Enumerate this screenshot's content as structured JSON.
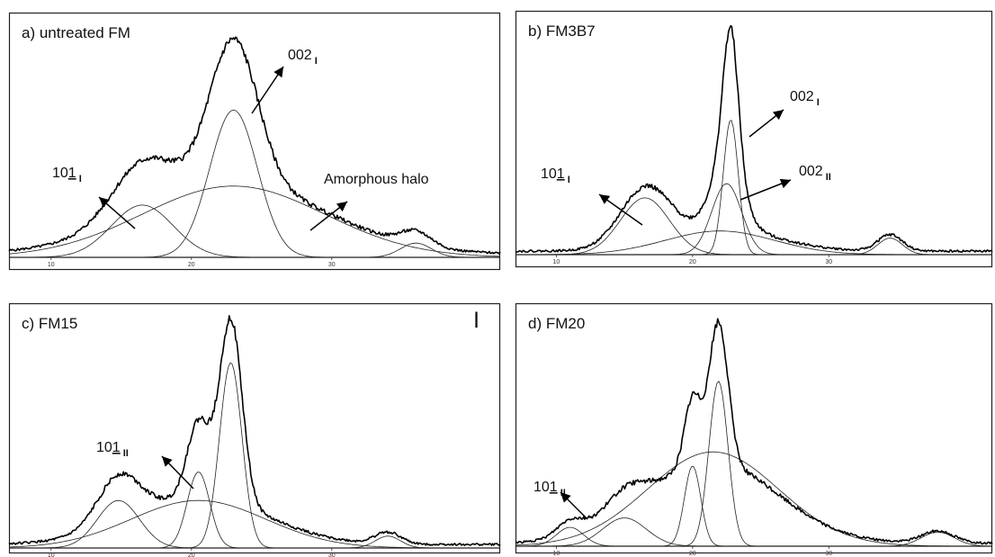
{
  "figure": {
    "stray_mark": "|"
  },
  "chart_data": [
    {
      "type": "line",
      "panel": "a",
      "title": "a)  untreated FM",
      "xlim": [
        7,
        42
      ],
      "ylim": [
        0,
        1.0
      ],
      "xticks": [
        10,
        20,
        30
      ],
      "grid": false,
      "peaks": [
        {
          "center": 16.5,
          "height": 0.22,
          "width": 2.2
        },
        {
          "center": 23.0,
          "height": 0.62,
          "width": 1.7
        },
        {
          "center": 23.0,
          "height": 0.3,
          "width": 6.5
        },
        {
          "center": 36.0,
          "height": 0.06,
          "width": 1.1
        }
      ],
      "observed_max": 0.92,
      "annotations": [
        {
          "base": "101",
          "underline_char": "1",
          "sub": "I",
          "x": 16,
          "y": 0.16,
          "dir": "up-left"
        },
        {
          "base": "002",
          "sub": "I",
          "x": 23,
          "y": 0.58,
          "dir": "up-right"
        },
        {
          "base": "Amorphous halo",
          "sub": "",
          "x": 28.5,
          "y": 0.11,
          "dir": "up-right"
        }
      ]
    },
    {
      "type": "line",
      "panel": "b",
      "title": "b) FM3B7",
      "xlim": [
        7,
        42
      ],
      "ylim": [
        0,
        1.0
      ],
      "xticks": [
        10,
        20,
        30
      ],
      "grid": false,
      "peaks": [
        {
          "center": 16.5,
          "height": 0.24,
          "width": 1.8
        },
        {
          "center": 22.8,
          "height": 0.57,
          "width": 0.55
        },
        {
          "center": 22.5,
          "height": 0.3,
          "width": 1.1
        },
        {
          "center": 22.0,
          "height": 0.1,
          "width": 4.0
        },
        {
          "center": 34.5,
          "height": 0.07,
          "width": 0.9
        }
      ],
      "observed_max": 0.96,
      "annotations": [
        {
          "base": "101",
          "underline_char": "1",
          "sub": "I",
          "x": 17,
          "y": 0.2,
          "dir": "up-left"
        },
        {
          "base": "002",
          "sub": "I",
          "x": 23,
          "y": 0.49,
          "dir": "up-right"
        },
        {
          "base": "002",
          "sub": "II",
          "x": 23,
          "y": 0.3,
          "dir": "up-right"
        }
      ]
    },
    {
      "type": "line",
      "panel": "c",
      "title": "c) FM15",
      "xlim": [
        7,
        42
      ],
      "ylim": [
        0,
        1.0
      ],
      "xticks": [
        10,
        20,
        30
      ],
      "grid": false,
      "peaks": [
        {
          "center": 14.8,
          "height": 0.2,
          "width": 1.5
        },
        {
          "center": 20.5,
          "height": 0.32,
          "width": 0.8
        },
        {
          "center": 22.8,
          "height": 0.78,
          "width": 0.8
        },
        {
          "center": 20.5,
          "height": 0.2,
          "width": 4.8
        },
        {
          "center": 34.0,
          "height": 0.05,
          "width": 0.9
        }
      ],
      "observed_max": 0.97,
      "annotations": [
        {
          "base": "101",
          "underline_char": "1",
          "sub": "II",
          "x": 19.8,
          "y": 0.2,
          "dir": "up-left"
        }
      ]
    },
    {
      "type": "line",
      "panel": "d",
      "title": "d) FM20",
      "xlim": [
        7,
        42
      ],
      "ylim": [
        0,
        1.0
      ],
      "xticks": [
        10,
        20,
        30
      ],
      "grid": false,
      "peaks": [
        {
          "center": 11.0,
          "height": 0.08,
          "width": 1.0
        },
        {
          "center": 15.0,
          "height": 0.12,
          "width": 1.6
        },
        {
          "center": 20.0,
          "height": 0.34,
          "width": 0.6
        },
        {
          "center": 21.9,
          "height": 0.7,
          "width": 0.7
        },
        {
          "center": 21.5,
          "height": 0.4,
          "width": 4.8
        },
        {
          "center": 38.0,
          "height": 0.06,
          "width": 1.2
        }
      ],
      "observed_max": 0.95,
      "annotations": [
        {
          "base": "101",
          "underline_char": "1",
          "sub": "II",
          "x": 11.5,
          "y": 0.1,
          "dir": "up-left"
        }
      ]
    }
  ]
}
